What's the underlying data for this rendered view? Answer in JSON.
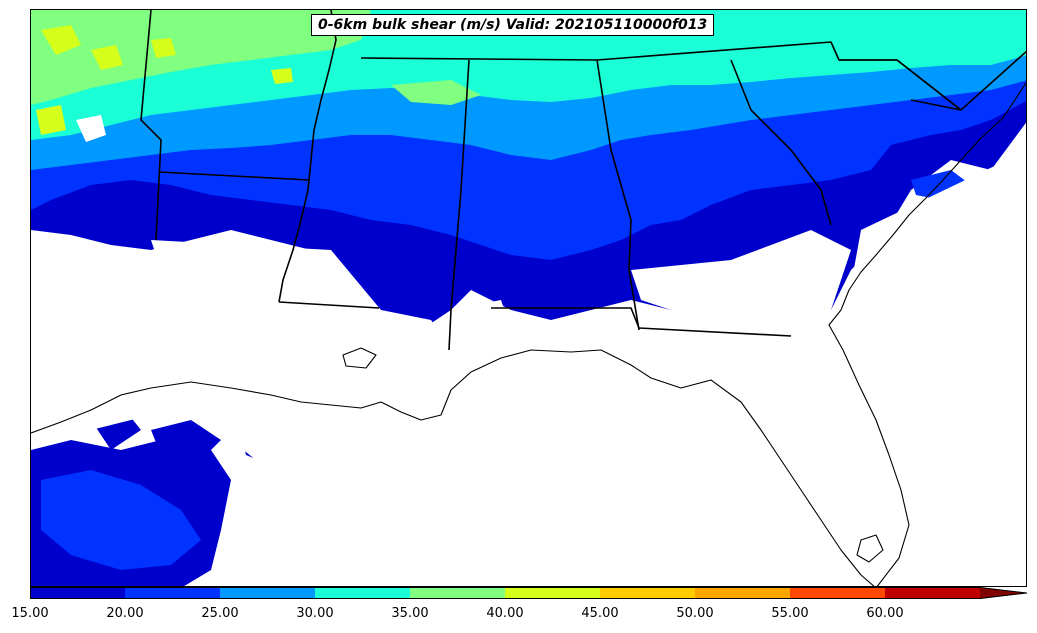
{
  "title": "0-6km bulk shear (m/s) Valid: 202105110000f013",
  "colorbar": {
    "ticks": [
      "15.00",
      "20.00",
      "25.00",
      "30.00",
      "35.00",
      "40.00",
      "45.00",
      "50.00",
      "55.00",
      "60.00"
    ],
    "colors": [
      "#0000cc",
      "#0033ff",
      "#0099ff",
      "#1affd5",
      "#80ff80",
      "#d5ff1a",
      "#ffcc00",
      "#ffa500",
      "#ff4800",
      "#c00000"
    ],
    "extend_color": "#800000"
  },
  "map": {
    "region": "Southeastern United States",
    "variable_units": "m/s",
    "shear_colors": {
      "band_15_20": "#0000cc",
      "band_20_25": "#0033ff",
      "band_25_30": "#0099ff",
      "band_30_35": "#1affd5",
      "band_35_40": "#80ff80",
      "band_40_45": "#d5ff1a"
    }
  }
}
